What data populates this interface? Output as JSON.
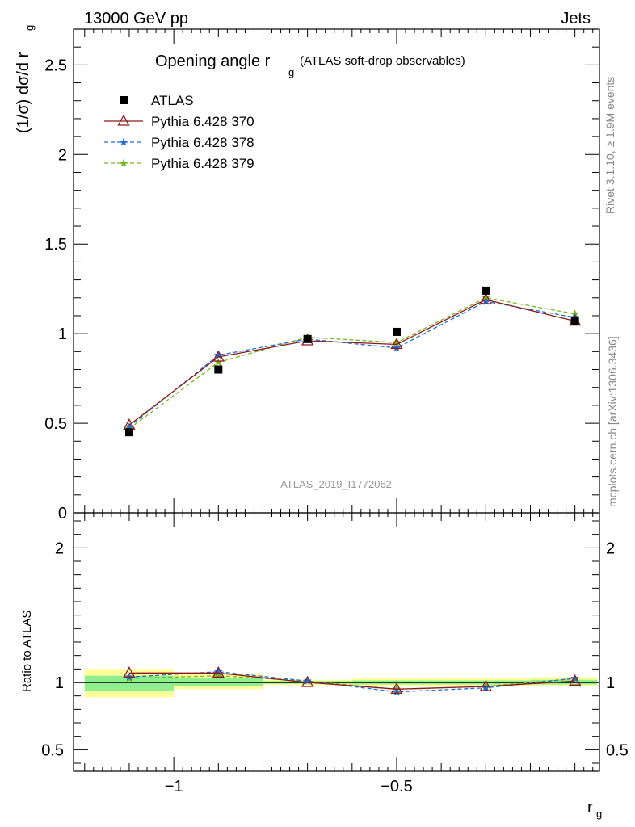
{
  "header": {
    "left": "13000 GeV pp",
    "right": "Jets"
  },
  "side_text": {
    "rivet": "Rivet 3.1.10, ≥ 1.9M events",
    "mcplots": "mcplots.cern.ch [arXiv:1306.3436]"
  },
  "watermark": "ATLAS_2019_I1772062",
  "chart_data": [
    {
      "type": "line",
      "title_main": "Opening angle r",
      "title_sub": "g",
      "title_extra": "(ATLAS soft-drop observables)",
      "ylabel": "(1/σ) dσ/d r",
      "ylabel_sub": "g",
      "ylim": [
        0,
        2.7
      ],
      "xlim": [
        -1.225,
        -0.045
      ],
      "yticks": [
        {
          "v": 0,
          "label": "0"
        },
        {
          "v": 0.5,
          "label": "0.5"
        },
        {
          "v": 1,
          "label": "1"
        },
        {
          "v": 1.5,
          "label": "1.5"
        },
        {
          "v": 2,
          "label": "2"
        },
        {
          "v": 2.5,
          "label": "2.5"
        }
      ],
      "x": [
        -1.1,
        -0.9,
        -0.7,
        -0.5,
        -0.3,
        -0.1
      ],
      "legend_position": "top-left",
      "series": [
        {
          "name": "ATLAS",
          "marker": "square",
          "color": "#000000",
          "values": [
            0.45,
            0.8,
            0.97,
            1.01,
            1.24,
            1.07
          ]
        },
        {
          "name": "Pythia 6.428 370",
          "marker": "triangle-open",
          "color": "#8b1a1a",
          "dash": "solid",
          "values": [
            0.49,
            0.87,
            0.96,
            0.94,
            1.19,
            1.07
          ]
        },
        {
          "name": "Pythia 6.428 378",
          "marker": "star",
          "color": "#1e6fd9",
          "dash": "dashed",
          "values": [
            0.48,
            0.88,
            0.97,
            0.92,
            1.18,
            1.09
          ]
        },
        {
          "name": "Pythia 6.428 379",
          "marker": "star",
          "color": "#7ab51d",
          "dash": "dashed",
          "values": [
            0.47,
            0.84,
            0.98,
            0.95,
            1.2,
            1.11
          ]
        }
      ]
    },
    {
      "type": "line",
      "ylabel": "Ratio to ATLAS",
      "xlabel": "r",
      "xlabel_sub": "g",
      "ylim": [
        0.34,
        2.26
      ],
      "xlim": [
        -1.225,
        -0.045
      ],
      "yticks": [
        {
          "v": 0.5,
          "label": "0.5"
        },
        {
          "v": 1,
          "label": "1"
        },
        {
          "v": 2,
          "label": "2"
        }
      ],
      "xticks": [
        {
          "v": -1,
          "label": "−1"
        },
        {
          "v": -0.5,
          "label": "−0.5"
        }
      ],
      "x": [
        -1.1,
        -0.9,
        -0.7,
        -0.5,
        -0.3,
        -0.1
      ],
      "bands": [
        {
          "x0": -1.2,
          "x1": -1.0,
          "yellow": [
            0.89,
            1.1
          ],
          "green": [
            0.94,
            1.05
          ]
        },
        {
          "x0": -1.0,
          "x1": -0.8,
          "yellow": [
            0.95,
            1.06
          ],
          "green": [
            0.97,
            1.03
          ]
        },
        {
          "x0": -0.8,
          "x1": -0.6,
          "yellow": [
            0.98,
            1.02
          ],
          "green": [
            0.99,
            1.01
          ]
        },
        {
          "x0": -0.6,
          "x1": -0.4,
          "yellow": [
            0.97,
            1.03
          ],
          "green": [
            0.985,
            1.015
          ]
        },
        {
          "x0": -0.4,
          "x1": -0.2,
          "yellow": [
            0.97,
            1.03
          ],
          "green": [
            0.985,
            1.015
          ]
        },
        {
          "x0": -0.2,
          "x1": -0.05,
          "yellow": [
            0.97,
            1.04
          ],
          "green": [
            0.985,
            1.02
          ]
        }
      ],
      "series": [
        {
          "name": "Pythia 6.428 370",
          "marker": "triangle-open",
          "color": "#8b1a1a",
          "dash": "solid",
          "values": [
            1.07,
            1.07,
            1.0,
            0.95,
            0.97,
            1.01
          ]
        },
        {
          "name": "Pythia 6.428 378",
          "marker": "star",
          "color": "#1e6fd9",
          "dash": "dashed",
          "values": [
            1.04,
            1.08,
            1.01,
            0.93,
            0.96,
            1.03
          ]
        },
        {
          "name": "Pythia 6.428 379",
          "marker": "star",
          "color": "#7ab51d",
          "dash": "dashed",
          "values": [
            1.03,
            1.05,
            1.01,
            0.95,
            0.97,
            1.03
          ]
        }
      ]
    }
  ]
}
